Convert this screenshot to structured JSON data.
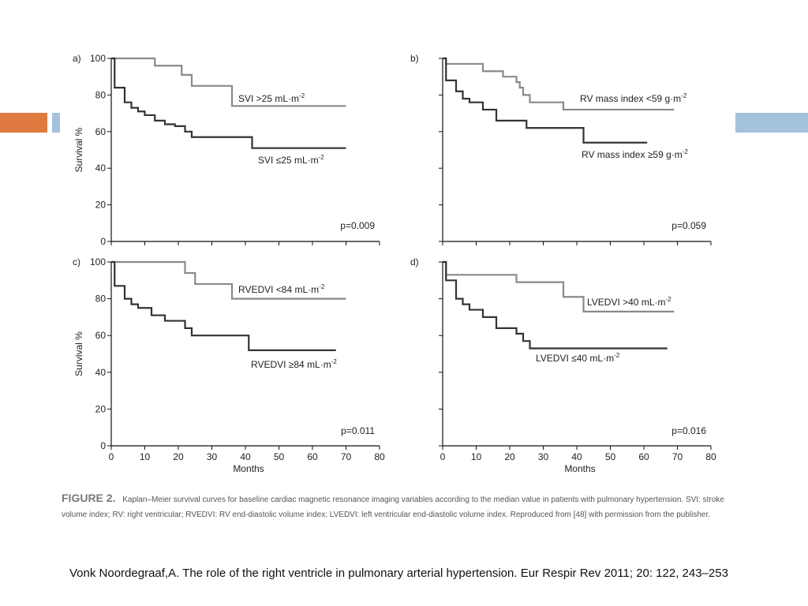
{
  "chart_data": [
    {
      "type": "line",
      "panel_label": "a)",
      "ylabel": "Survival %",
      "xlabel": "",
      "xlim": [
        0,
        80
      ],
      "ylim": [
        0,
        100
      ],
      "yticks": [
        "0",
        "20",
        "40",
        "60",
        "80",
        "100"
      ],
      "xticks": [],
      "pvalue": "p=0.009",
      "series": [
        {
          "name": "SVI >25 mL·m",
          "superscript": "-2",
          "style": "light",
          "x": [
            0,
            13,
            21,
            24,
            26,
            36,
            70
          ],
          "y": [
            100,
            96,
            91,
            85,
            85,
            74,
            74
          ]
        },
        {
          "name": "SVI ≤25 mL·m",
          "superscript": "-2",
          "style": "dark",
          "x": [
            0,
            1,
            4,
            6,
            8,
            10,
            13,
            16,
            19,
            22,
            24,
            42,
            70
          ],
          "y": [
            100,
            84,
            76,
            73,
            71,
            69,
            66,
            64,
            63,
            60,
            57,
            51,
            51
          ]
        }
      ]
    },
    {
      "type": "line",
      "panel_label": "b)",
      "ylabel": "",
      "xlabel": "",
      "xlim": [
        0,
        80
      ],
      "ylim": [
        0,
        100
      ],
      "yticks": [],
      "xticks": [],
      "pvalue": "p=0.059",
      "series": [
        {
          "name": "RV mass index <59 g·m",
          "superscript": "-2",
          "style": "light",
          "x": [
            0,
            1,
            12,
            18,
            22,
            23,
            24,
            26,
            36,
            69
          ],
          "y": [
            100,
            97,
            93,
            90,
            87,
            84,
            80,
            76,
            72,
            72
          ]
        },
        {
          "name": "RV mass index ≥59 g·m",
          "superscript": "-2",
          "style": "dark",
          "x": [
            0,
            1,
            4,
            6,
            8,
            12,
            16,
            25,
            42,
            61
          ],
          "y": [
            100,
            88,
            82,
            78,
            76,
            72,
            66,
            62,
            54,
            54
          ]
        }
      ]
    },
    {
      "type": "line",
      "panel_label": "c)",
      "ylabel": "Survival %",
      "xlabel": "Months",
      "xlim": [
        0,
        80
      ],
      "ylim": [
        0,
        100
      ],
      "yticks": [
        "0",
        "20",
        "40",
        "60",
        "80",
        "100"
      ],
      "xticks": [
        "0",
        "10",
        "20",
        "30",
        "40",
        "50",
        "60",
        "70",
        "80"
      ],
      "pvalue": "p=0.011",
      "series": [
        {
          "name": "RVEDVI <84 mL·m",
          "superscript": "-2",
          "style": "light",
          "x": [
            0,
            22,
            25,
            36,
            70
          ],
          "y": [
            100,
            94,
            88,
            80,
            80
          ]
        },
        {
          "name": "RVEDVI ≥84 mL·m",
          "superscript": "-2",
          "style": "dark",
          "x": [
            0,
            1,
            4,
            6,
            8,
            12,
            16,
            22,
            24,
            41,
            67
          ],
          "y": [
            100,
            87,
            80,
            77,
            75,
            71,
            68,
            64,
            60,
            52,
            52
          ]
        }
      ]
    },
    {
      "type": "line",
      "panel_label": "d)",
      "ylabel": "",
      "xlabel": "Months",
      "xlim": [
        0,
        80
      ],
      "ylim": [
        0,
        100
      ],
      "yticks": [],
      "xticks": [
        "0",
        "10",
        "20",
        "30",
        "40",
        "50",
        "60",
        "70",
        "80"
      ],
      "pvalue": "p=0.016",
      "series": [
        {
          "name": "LVEDVI >40 mL·m",
          "superscript": "-2",
          "style": "light",
          "x": [
            0,
            1,
            22,
            36,
            42,
            69
          ],
          "y": [
            100,
            93,
            89,
            81,
            73,
            73
          ]
        },
        {
          "name": "LVEDVI ≤40 mL·m",
          "superscript": "-2",
          "style": "dark",
          "x": [
            0,
            1,
            4,
            6,
            8,
            12,
            16,
            22,
            24,
            26,
            67
          ],
          "y": [
            100,
            90,
            80,
            77,
            74,
            70,
            64,
            61,
            57,
            53,
            53
          ]
        }
      ]
    }
  ],
  "colors": {
    "light_series": "#8a8a8a",
    "dark_series": "#333333",
    "axis": "#111111",
    "accent_orange": "#E07A40",
    "accent_blue": "#A4C2DC"
  },
  "caption": {
    "figure_label": "FIGURE 2.",
    "text": "Kaplan–Meier survival curves for baseline cardiac magnetic resonance imaging variables according to the median value in patients with pulmonary hypertension. SVI: stroke volume index; RV: right ventricular; RVEDVI: RV end-diastolic volume index; LVEDVI: left ventricular end-diastolic volume index. Reproduced from [48] with permission from the publisher."
  },
  "citation": "Vonk Noordegraaf,A. The role of the right ventricle in pulmonary arterial hypertension. Eur Respir Rev 2011; 20: 122, 243–253"
}
